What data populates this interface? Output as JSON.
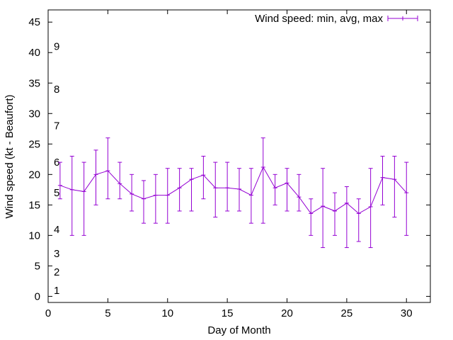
{
  "chart_data": {
    "type": "line",
    "title": "",
    "xlabel": "Day of Month",
    "ylabel": "Wind speed (kt - Beaufort)",
    "xlim": [
      0,
      32
    ],
    "ylim": [
      -1,
      47
    ],
    "xticks": [
      0,
      5,
      10,
      15,
      20,
      25,
      30
    ],
    "yticks": [
      0,
      5,
      10,
      15,
      20,
      25,
      30,
      35,
      40,
      45
    ],
    "grid": false,
    "legend": "top-right",
    "series_color": "#9400d3",
    "series": [
      {
        "name": "Wind speed: min, avg, max",
        "x": [
          1,
          2,
          3,
          4,
          5,
          6,
          7,
          8,
          9,
          10,
          11,
          12,
          13,
          14,
          15,
          16,
          17,
          18,
          19,
          20,
          21,
          22,
          23,
          24,
          25,
          26,
          27,
          28,
          29,
          30
        ],
        "avg": [
          18.2,
          17.5,
          17.2,
          20.0,
          20.6,
          18.5,
          16.8,
          16.0,
          16.6,
          16.6,
          17.8,
          19.2,
          19.9,
          17.8,
          17.8,
          17.6,
          16.6,
          21.2,
          17.8,
          18.6,
          16.3,
          13.6,
          14.8,
          14.0,
          15.3,
          13.6,
          14.7,
          19.5,
          19.2,
          17.0
        ],
        "min": [
          16,
          10,
          10,
          15,
          16,
          16,
          14,
          12,
          12,
          12,
          14,
          14,
          16,
          13,
          14,
          14,
          12,
          12,
          15,
          14,
          14,
          10,
          8,
          10,
          8,
          9,
          8,
          15,
          13,
          10
        ],
        "max": [
          22,
          23,
          22,
          24,
          26,
          22,
          20,
          19,
          20,
          21,
          21,
          21,
          23,
          22,
          22,
          21,
          21,
          26,
          20,
          21,
          20,
          16,
          21,
          17,
          18,
          16,
          21,
          23,
          23,
          22
        ]
      }
    ],
    "beaufort_labels": [
      {
        "label": "1",
        "y": 1
      },
      {
        "label": "2",
        "y": 4
      },
      {
        "label": "3",
        "y": 7
      },
      {
        "label": "4",
        "y": 11
      },
      {
        "label": "5",
        "y": 17
      },
      {
        "label": "6",
        "y": 22
      },
      {
        "label": "7",
        "y": 28
      },
      {
        "label": "8",
        "y": 34
      },
      {
        "label": "9",
        "y": 41
      }
    ]
  }
}
